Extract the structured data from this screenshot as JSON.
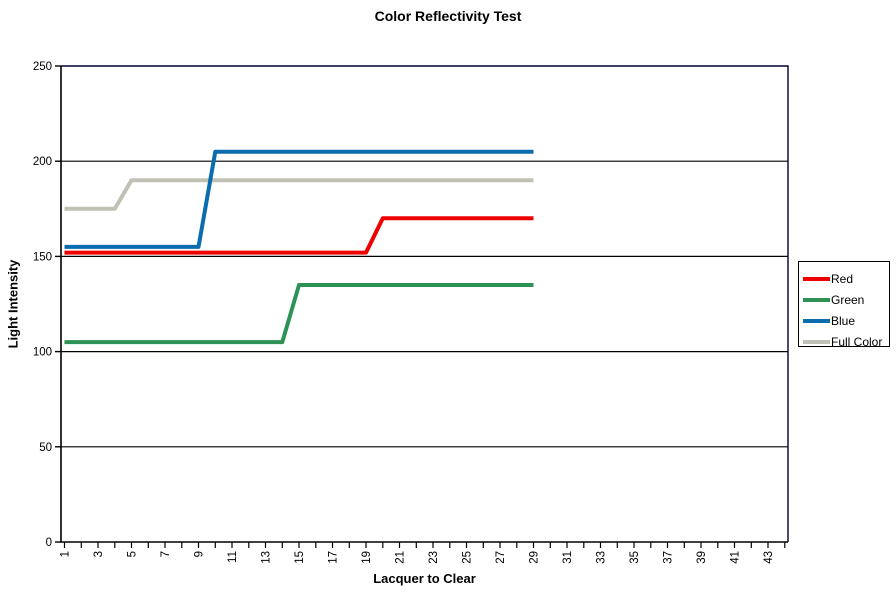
{
  "chart_data": {
    "type": "line",
    "title": "Color Reflectivity Test",
    "xlabel": "Lacquer to Clear",
    "ylabel": "Light Intensity",
    "ylim": [
      0,
      250
    ],
    "y_ticks": [
      0,
      50,
      100,
      150,
      200,
      250
    ],
    "x_axis_categories_shown": 44,
    "x_tick_labels": [
      "1",
      "3",
      "5",
      "7",
      "9",
      "11",
      "13",
      "15",
      "17",
      "19",
      "21",
      "23",
      "25",
      "27",
      "29",
      "31",
      "33",
      "35",
      "37",
      "39",
      "41",
      "43"
    ],
    "grid": "horizontal",
    "legend_position": "right",
    "x": [
      1,
      2,
      3,
      4,
      5,
      6,
      7,
      8,
      9,
      10,
      11,
      12,
      13,
      14,
      15,
      16,
      17,
      18,
      19,
      20,
      21,
      22,
      23,
      24,
      25,
      26,
      27,
      28,
      29
    ],
    "series": [
      {
        "name": "Red",
        "color": "#ee0000",
        "values": [
          152,
          152,
          152,
          152,
          152,
          152,
          152,
          152,
          152,
          152,
          152,
          152,
          152,
          152,
          152,
          152,
          152,
          152,
          152,
          170,
          170,
          170,
          170,
          170,
          170,
          170,
          170,
          170,
          170
        ]
      },
      {
        "name": "Green",
        "color": "#2e9156",
        "values": [
          105,
          105,
          105,
          105,
          105,
          105,
          105,
          105,
          105,
          105,
          105,
          105,
          105,
          105,
          135,
          135,
          135,
          135,
          135,
          135,
          135,
          135,
          135,
          135,
          135,
          135,
          135,
          135,
          135
        ]
      },
      {
        "name": "Blue",
        "color": "#0b6cb0",
        "values": [
          155,
          155,
          155,
          155,
          155,
          155,
          155,
          155,
          155,
          205,
          205,
          205,
          205,
          205,
          205,
          205,
          205,
          205,
          205,
          205,
          205,
          205,
          205,
          205,
          205,
          205,
          205,
          205,
          205
        ]
      },
      {
        "name": "Full Color",
        "color": "#c0c0b4",
        "values": [
          175,
          175,
          175,
          175,
          190,
          190,
          190,
          190,
          190,
          190,
          190,
          190,
          190,
          190,
          190,
          190,
          190,
          190,
          190,
          190,
          190,
          190,
          190,
          190,
          190,
          190,
          190,
          190,
          190
        ]
      }
    ],
    "axis_color": "#000000",
    "border_color": "#000033"
  }
}
